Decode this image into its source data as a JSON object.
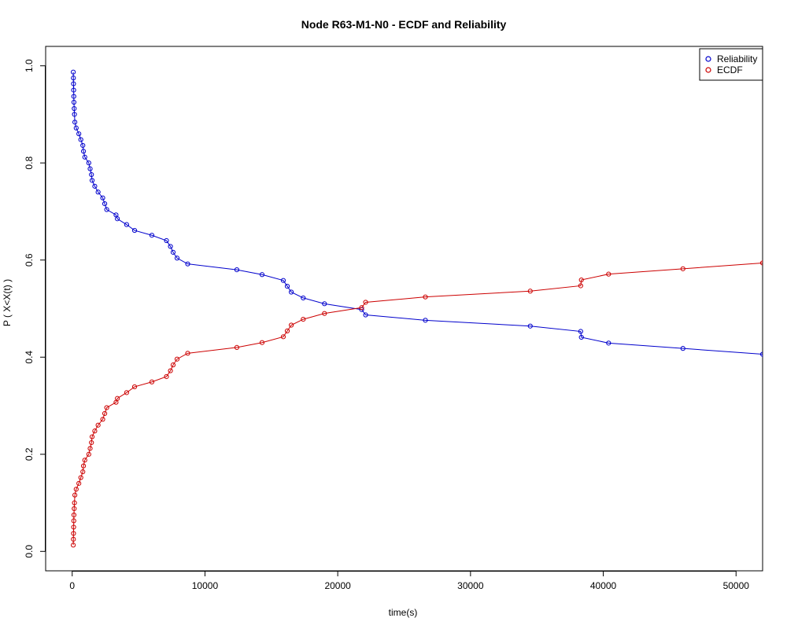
{
  "chart_data": {
    "type": "line",
    "title": "Node R63-M1-N0 - ECDF and Reliability",
    "xlabel": "time(s)",
    "ylabel": "P ( X<X(t) )",
    "xlim": [
      -2000,
      52000
    ],
    "ylim": [
      -0.04,
      1.04
    ],
    "x_ticks": [
      0,
      10000,
      20000,
      30000,
      40000,
      50000
    ],
    "x_tick_labels": [
      "0",
      "10000",
      "20000",
      "30000",
      "40000",
      "50000"
    ],
    "y_ticks": [
      0.0,
      0.2,
      0.4,
      0.6,
      0.8,
      1.0
    ],
    "y_tick_labels": [
      "0.0",
      "0.2",
      "0.4",
      "0.6",
      "0.8",
      "1.0"
    ],
    "grid": false,
    "legend_position": "top-right",
    "x": [
      80,
      90,
      100,
      110,
      120,
      130,
      150,
      170,
      200,
      300,
      500,
      650,
      800,
      850,
      950,
      1250,
      1350,
      1450,
      1500,
      1700,
      1950,
      2300,
      2450,
      2600,
      3300,
      3400,
      4100,
      4700,
      6000,
      7100,
      7400,
      7600,
      7900,
      8700,
      12400,
      14300,
      15900,
      16200,
      16500,
      17400,
      19000,
      21800,
      22100,
      26600,
      34500,
      38300,
      38350,
      40400,
      46000,
      52000
    ],
    "series": [
      {
        "name": "Reliability",
        "color": "#0000cc",
        "values": [
          0.987,
          0.975,
          0.963,
          0.95,
          0.937,
          0.925,
          0.912,
          0.9,
          0.884,
          0.872,
          0.86,
          0.848,
          0.836,
          0.824,
          0.812,
          0.8,
          0.788,
          0.776,
          0.764,
          0.752,
          0.74,
          0.728,
          0.716,
          0.704,
          0.693,
          0.685,
          0.673,
          0.661,
          0.651,
          0.64,
          0.628,
          0.616,
          0.604,
          0.592,
          0.58,
          0.57,
          0.558,
          0.546,
          0.534,
          0.522,
          0.51,
          0.498,
          0.487,
          0.476,
          0.464,
          0.453,
          0.441,
          0.429,
          0.418,
          0.406
        ]
      },
      {
        "name": "ECDF",
        "color": "#cc0000",
        "values": [
          0.013,
          0.025,
          0.037,
          0.05,
          0.063,
          0.075,
          0.088,
          0.1,
          0.116,
          0.128,
          0.14,
          0.152,
          0.164,
          0.176,
          0.188,
          0.2,
          0.212,
          0.224,
          0.236,
          0.248,
          0.26,
          0.272,
          0.284,
          0.296,
          0.307,
          0.315,
          0.327,
          0.339,
          0.349,
          0.36,
          0.372,
          0.384,
          0.396,
          0.408,
          0.42,
          0.43,
          0.442,
          0.454,
          0.466,
          0.478,
          0.49,
          0.502,
          0.513,
          0.524,
          0.536,
          0.547,
          0.559,
          0.571,
          0.582,
          0.594
        ]
      }
    ],
    "line_extension": {
      "x_end": 52000,
      "reliability": 0.4,
      "ecdf": 0.6
    }
  }
}
